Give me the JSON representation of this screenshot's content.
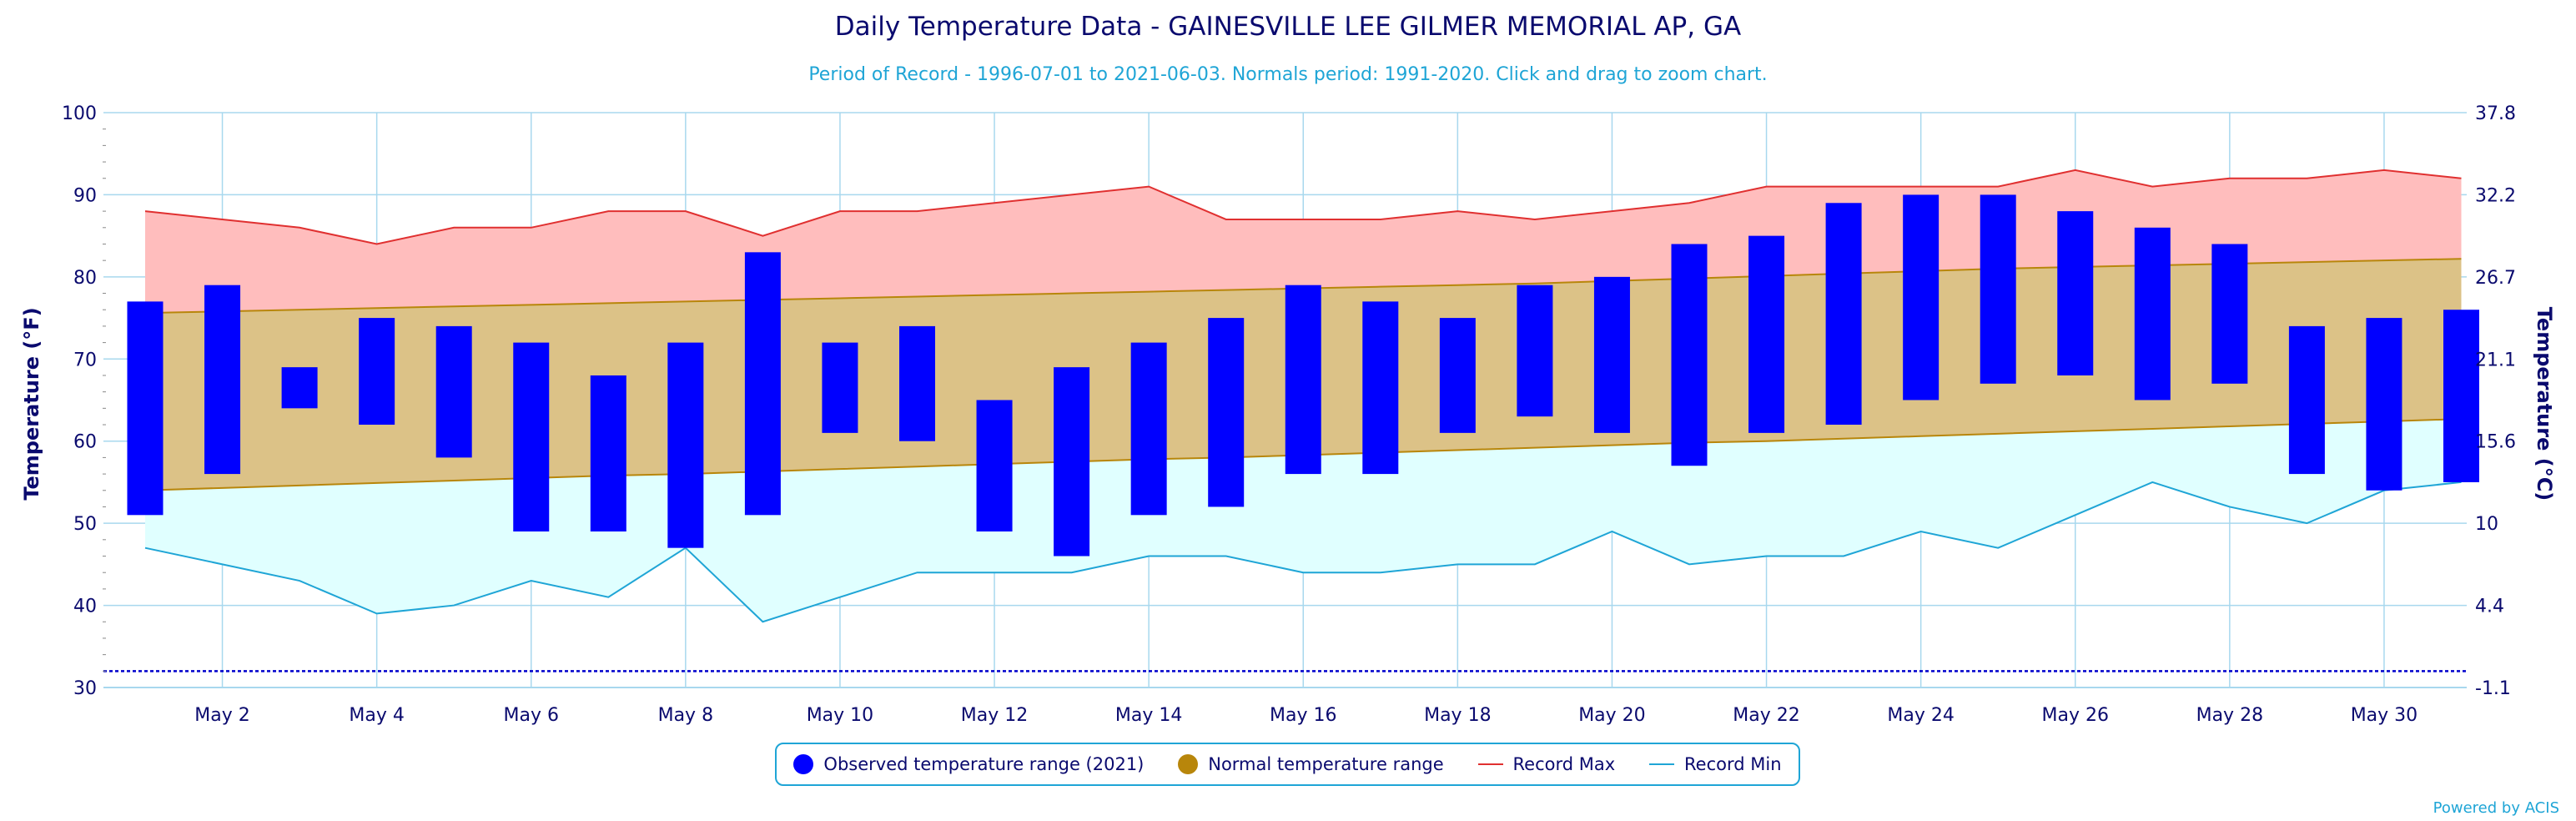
{
  "header": {
    "title": "Daily Temperature Data - GAINESVILLE LEE GILMER MEMORIAL AP, GA",
    "subtitle": "Period of Record - 1996-07-01 to 2021-06-03. Normals period: 1991-2020. Click and drag to zoom chart."
  },
  "legend": {
    "observed": "Observed temperature range (2021)",
    "normal": "Normal temperature range",
    "record_max": "Record Max",
    "record_min": "Record Min"
  },
  "credits": "Powered by ACIS",
  "colors": {
    "title": "#0a0a6e",
    "subtitle": "#1fa5d6",
    "observed": "#0000ff",
    "normal_fill": "#dcc287",
    "normal_line": "#b8860b",
    "record_max_fill": "#ffbdbd",
    "record_max_line": "#e03030",
    "record_min_fill": "#e0ffff",
    "record_min_line": "#1fa5d6",
    "grid": "#a8d8ee",
    "freeze_line": "#0000cc"
  },
  "chart_data": {
    "type": "bar",
    "title": "Daily Temperature Data - GAINESVILLE LEE GILMER MEMORIAL AP, GA",
    "xlabel": "",
    "ylabel": "Temperature (°F)",
    "y2label": "Temperature (°C)",
    "ylim": [
      30,
      100
    ],
    "yticks": [
      30,
      40,
      50,
      60,
      70,
      80,
      90,
      100
    ],
    "y2ticks": [
      "-1.1",
      "4.4",
      "10",
      "15.6",
      "21.1",
      "26.7",
      "32.2",
      "37.8"
    ],
    "xtick_labels": [
      "May 2",
      "May 4",
      "May 6",
      "May 8",
      "May 10",
      "May 12",
      "May 14",
      "May 16",
      "May 18",
      "May 20",
      "May 22",
      "May 24",
      "May 26",
      "May 28",
      "May 30"
    ],
    "xtick_days": [
      2,
      4,
      6,
      8,
      10,
      12,
      14,
      16,
      18,
      20,
      22,
      24,
      26,
      28,
      30
    ],
    "freeze_line": 32,
    "grid": true,
    "days": [
      1,
      2,
      3,
      4,
      5,
      6,
      7,
      8,
      9,
      10,
      11,
      12,
      13,
      14,
      15,
      16,
      17,
      18,
      19,
      20,
      21,
      22,
      23,
      24,
      25,
      26,
      27,
      28,
      29,
      30,
      31
    ],
    "series": [
      {
        "name": "Observed temperature range (2021)",
        "type": "columnrange",
        "low": [
          51,
          56,
          64,
          62,
          58,
          49,
          49,
          47,
          51,
          61,
          60,
          49,
          46,
          51,
          52,
          56,
          56,
          61,
          63,
          61,
          57,
          61,
          62,
          65,
          67,
          68,
          65,
          67,
          56,
          54,
          55
        ],
        "high": [
          77,
          79,
          69,
          75,
          74,
          72,
          68,
          72,
          83,
          72,
          74,
          65,
          69,
          72,
          75,
          79,
          77,
          75,
          79,
          80,
          84,
          85,
          89,
          90,
          90,
          88,
          86,
          84,
          74,
          75,
          76
        ]
      },
      {
        "name": "Normal temperature range",
        "type": "arearange",
        "low": [
          54.0,
          54.3,
          54.6,
          54.9,
          55.2,
          55.5,
          55.8,
          56.0,
          56.3,
          56.6,
          56.9,
          57.2,
          57.5,
          57.8,
          58.0,
          58.3,
          58.6,
          58.9,
          59.2,
          59.5,
          59.8,
          60.0,
          60.3,
          60.6,
          60.9,
          61.2,
          61.5,
          61.8,
          62.1,
          62.4,
          62.7
        ],
        "high": [
          75.6,
          75.8,
          76.0,
          76.2,
          76.4,
          76.6,
          76.8,
          77.0,
          77.2,
          77.4,
          77.6,
          77.8,
          78.0,
          78.2,
          78.4,
          78.6,
          78.8,
          79.0,
          79.2,
          79.5,
          79.8,
          80.1,
          80.4,
          80.7,
          81.0,
          81.2,
          81.4,
          81.6,
          81.8,
          82.0,
          82.2
        ]
      },
      {
        "name": "Record Max",
        "type": "line",
        "values": [
          88,
          87,
          86,
          84,
          86,
          86,
          88,
          88,
          85,
          88,
          88,
          89,
          90,
          91,
          87,
          87,
          87,
          88,
          87,
          88,
          89,
          91,
          91,
          91,
          91,
          93,
          91,
          92,
          92,
          93,
          92
        ]
      },
      {
        "name": "Record Min",
        "type": "line",
        "values": [
          47,
          45,
          43,
          39,
          40,
          43,
          41,
          47,
          38,
          41,
          44,
          44,
          44,
          46,
          46,
          44,
          44,
          45,
          45,
          49,
          45,
          46,
          46,
          49,
          47,
          51,
          55,
          52,
          50,
          54,
          55
        ]
      }
    ]
  }
}
